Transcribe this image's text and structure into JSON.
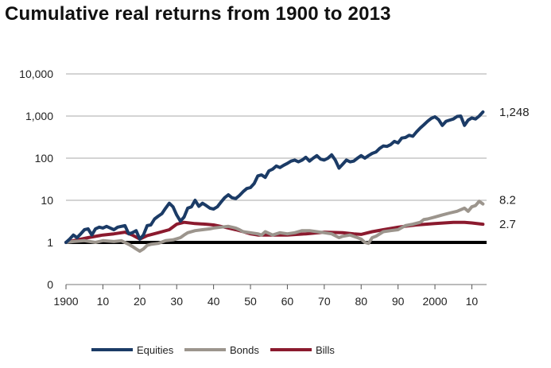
{
  "title": "Cumulative real returns from 1900 to 2013",
  "chart_data": {
    "type": "line",
    "title": "Cumulative real returns from 1900 to 2013",
    "xlabel": "",
    "ylabel": "",
    "yscale": "log",
    "ylim": [
      0.1,
      10000
    ],
    "xlim": [
      1900,
      2014
    ],
    "y_ticks": [
      {
        "value": 0.1,
        "label": "0"
      },
      {
        "value": 1,
        "label": "1"
      },
      {
        "value": 10,
        "label": "10"
      },
      {
        "value": 100,
        "label": "100"
      },
      {
        "value": 1000,
        "label": "1,000"
      },
      {
        "value": 10000,
        "label": "10,000"
      }
    ],
    "x_ticks": [
      {
        "value": 1900,
        "label": "1900"
      },
      {
        "value": 1910,
        "label": "10"
      },
      {
        "value": 1920,
        "label": "20"
      },
      {
        "value": 1930,
        "label": "30"
      },
      {
        "value": 1940,
        "label": "40"
      },
      {
        "value": 1950,
        "label": "50"
      },
      {
        "value": 1960,
        "label": "60"
      },
      {
        "value": 1970,
        "label": "70"
      },
      {
        "value": 1980,
        "label": "80"
      },
      {
        "value": 1990,
        "label": "90"
      },
      {
        "value": 2000,
        "label": "2000"
      },
      {
        "value": 2010,
        "label": "10"
      }
    ],
    "grid": "horizontal",
    "baseline": {
      "value": 1,
      "color": "#000000"
    },
    "legend": {
      "position": "bottom"
    },
    "series": [
      {
        "name": "Equities",
        "color": "#1b3b66",
        "end_label": "1,248",
        "x": [
          1900,
          1901,
          1902,
          1903,
          1904,
          1905,
          1906,
          1907,
          1908,
          1909,
          1910,
          1911,
          1912,
          1913,
          1914,
          1915,
          1916,
          1917,
          1918,
          1919,
          1920,
          1921,
          1922,
          1923,
          1924,
          1925,
          1926,
          1927,
          1928,
          1929,
          1930,
          1931,
          1932,
          1933,
          1934,
          1935,
          1936,
          1937,
          1938,
          1939,
          1940,
          1941,
          1942,
          1943,
          1944,
          1945,
          1946,
          1947,
          1948,
          1949,
          1950,
          1951,
          1952,
          1953,
          1954,
          1955,
          1956,
          1957,
          1958,
          1959,
          1960,
          1961,
          1962,
          1963,
          1964,
          1965,
          1966,
          1967,
          1968,
          1969,
          1970,
          1971,
          1972,
          1973,
          1974,
          1975,
          1976,
          1977,
          1978,
          1979,
          1980,
          1981,
          1982,
          1983,
          1984,
          1985,
          1986,
          1987,
          1988,
          1989,
          1990,
          1991,
          1992,
          1993,
          1994,
          1995,
          1996,
          1997,
          1998,
          1999,
          2000,
          2001,
          2002,
          2003,
          2004,
          2005,
          2006,
          2007,
          2008,
          2009,
          2010,
          2011,
          2012,
          2013
        ],
        "values": [
          1.0,
          1.2,
          1.5,
          1.3,
          1.6,
          2.0,
          2.1,
          1.5,
          2.1,
          2.3,
          2.2,
          2.4,
          2.2,
          2.0,
          2.3,
          2.4,
          2.5,
          1.6,
          1.7,
          1.9,
          1.2,
          1.5,
          2.5,
          2.6,
          3.6,
          4.2,
          4.8,
          6.5,
          8.5,
          7.0,
          4.5,
          3.2,
          4.0,
          6.5,
          7.0,
          10.0,
          7.2,
          8.5,
          7.5,
          6.5,
          6.2,
          7.0,
          9.0,
          11.5,
          13.5,
          11.5,
          11.0,
          13.0,
          16.0,
          19.0,
          20.0,
          25.0,
          38.0,
          40.0,
          35.0,
          50.0,
          55.0,
          65.0,
          60.0,
          68.0,
          75.0,
          85.0,
          90.0,
          82.0,
          90.0,
          105.0,
          85.0,
          100.0,
          115.0,
          95.0,
          90.0,
          100.0,
          120.0,
          90.0,
          58.0,
          72.0,
          90.0,
          82.0,
          85.0,
          100.0,
          115.0,
          100.0,
          115.0,
          130.0,
          140.0,
          170.0,
          195.0,
          190.0,
          210.0,
          250.0,
          230.0,
          300.0,
          310.0,
          350.0,
          330.0,
          420.0,
          520.0,
          620.0,
          750.0,
          880.0,
          960.0,
          820.0,
          600.0,
          750.0,
          800.0,
          850.0,
          980.0,
          1000.0,
          600.0,
          800.0,
          900.0,
          850.0,
          1000.0,
          1248.0
        ]
      },
      {
        "name": "Bonds",
        "color": "#9c958d",
        "end_label": "8.2",
        "x": [
          1900,
          1902,
          1905,
          1908,
          1910,
          1913,
          1915,
          1917,
          1918,
          1919,
          1920,
          1921,
          1922,
          1923,
          1925,
          1927,
          1929,
          1931,
          1932,
          1933,
          1935,
          1937,
          1939,
          1940,
          1942,
          1944,
          1946,
          1947,
          1948,
          1950,
          1952,
          1953,
          1954,
          1956,
          1958,
          1960,
          1962,
          1964,
          1966,
          1968,
          1970,
          1972,
          1974,
          1975,
          1977,
          1979,
          1980,
          1981,
          1982,
          1983,
          1984,
          1986,
          1988,
          1990,
          1992,
          1994,
          1996,
          1997,
          1998,
          2000,
          2002,
          2004,
          2006,
          2008,
          2009,
          2010,
          2011,
          2012,
          2013
        ],
        "values": [
          1.0,
          1.05,
          1.1,
          1.0,
          1.1,
          1.05,
          1.1,
          0.9,
          0.8,
          0.7,
          0.62,
          0.7,
          0.85,
          0.9,
          0.95,
          1.1,
          1.15,
          1.3,
          1.5,
          1.7,
          1.9,
          2.0,
          2.1,
          2.2,
          2.3,
          2.4,
          2.2,
          2.0,
          1.8,
          1.7,
          1.6,
          1.5,
          1.8,
          1.5,
          1.7,
          1.6,
          1.7,
          1.9,
          1.9,
          1.8,
          1.7,
          1.6,
          1.3,
          1.4,
          1.5,
          1.3,
          1.2,
          1.0,
          0.95,
          1.3,
          1.4,
          1.8,
          1.9,
          2.0,
          2.5,
          2.7,
          3.0,
          3.5,
          3.6,
          4.0,
          4.5,
          5.0,
          5.5,
          6.5,
          5.5,
          7.0,
          7.5,
          9.5,
          8.2
        ]
      },
      {
        "name": "Bills",
        "color": "#8b1a2e",
        "end_label": "2.7",
        "x": [
          1900,
          1903,
          1906,
          1910,
          1913,
          1916,
          1918,
          1920,
          1922,
          1925,
          1928,
          1930,
          1932,
          1935,
          1938,
          1940,
          1943,
          1946,
          1948,
          1950,
          1952,
          1955,
          1960,
          1965,
          1970,
          1975,
          1978,
          1980,
          1983,
          1986,
          1990,
          1995,
          2000,
          2005,
          2008,
          2010,
          2013
        ],
        "values": [
          1.0,
          1.15,
          1.3,
          1.5,
          1.6,
          1.75,
          1.5,
          1.2,
          1.45,
          1.7,
          2.0,
          2.7,
          3.0,
          2.8,
          2.7,
          2.6,
          2.3,
          2.0,
          1.8,
          1.6,
          1.5,
          1.5,
          1.5,
          1.6,
          1.75,
          1.7,
          1.6,
          1.55,
          1.8,
          2.0,
          2.3,
          2.6,
          2.8,
          3.0,
          3.0,
          2.9,
          2.7
        ]
      }
    ]
  }
}
